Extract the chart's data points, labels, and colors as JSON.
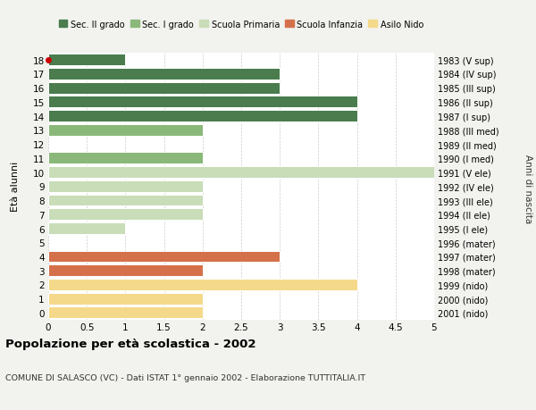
{
  "ages": [
    18,
    17,
    16,
    15,
    14,
    13,
    12,
    11,
    10,
    9,
    8,
    7,
    6,
    5,
    4,
    3,
    2,
    1,
    0
  ],
  "years": [
    "1983 (V sup)",
    "1984 (IV sup)",
    "1985 (III sup)",
    "1986 (II sup)",
    "1987 (I sup)",
    "1988 (III med)",
    "1989 (II med)",
    "1990 (I med)",
    "1991 (V ele)",
    "1992 (IV ele)",
    "1993 (III ele)",
    "1994 (II ele)",
    "1995 (I ele)",
    "1996 (mater)",
    "1997 (mater)",
    "1998 (mater)",
    "1999 (nido)",
    "2000 (nido)",
    "2001 (nido)"
  ],
  "values": [
    1,
    3,
    3,
    4,
    4,
    2,
    0,
    2,
    5,
    2,
    2,
    2,
    1,
    0,
    3,
    2,
    4,
    2,
    2
  ],
  "colors": [
    "#4a7c4e",
    "#4a7c4e",
    "#4a7c4e",
    "#4a7c4e",
    "#4a7c4e",
    "#8ab87a",
    "#8ab87a",
    "#8ab87a",
    "#c8ddb8",
    "#c8ddb8",
    "#c8ddb8",
    "#c8ddb8",
    "#c8ddb8",
    "#c8ddb8",
    "#d4714a",
    "#d4714a",
    "#f5d98a",
    "#f5d98a",
    "#f5d98a"
  ],
  "legend_labels": [
    "Sec. II grado",
    "Sec. I grado",
    "Scuola Primaria",
    "Scuola Infanzia",
    "Asilo Nido"
  ],
  "legend_colors": [
    "#4a7c4e",
    "#8ab87a",
    "#c8ddb8",
    "#d4714a",
    "#f5d98a"
  ],
  "title": "Popolazione per età scolastica - 2002",
  "subtitle": "COMUNE DI SALASCO (VC) - Dati ISTAT 1° gennaio 2002 - Elaborazione TUTTITALIA.IT",
  "ylabel_left": "Età alunni",
  "ylabel_right": "Anni di nascita",
  "xlim": [
    0,
    5.0
  ],
  "xticks": [
    0,
    0.5,
    1.0,
    1.5,
    2.0,
    2.5,
    3.0,
    3.5,
    4.0,
    4.5,
    5.0
  ],
  "background_color": "#f2f2ee",
  "bar_background": "#ffffff",
  "highlight_age": 18,
  "highlight_color": "#cc0000"
}
